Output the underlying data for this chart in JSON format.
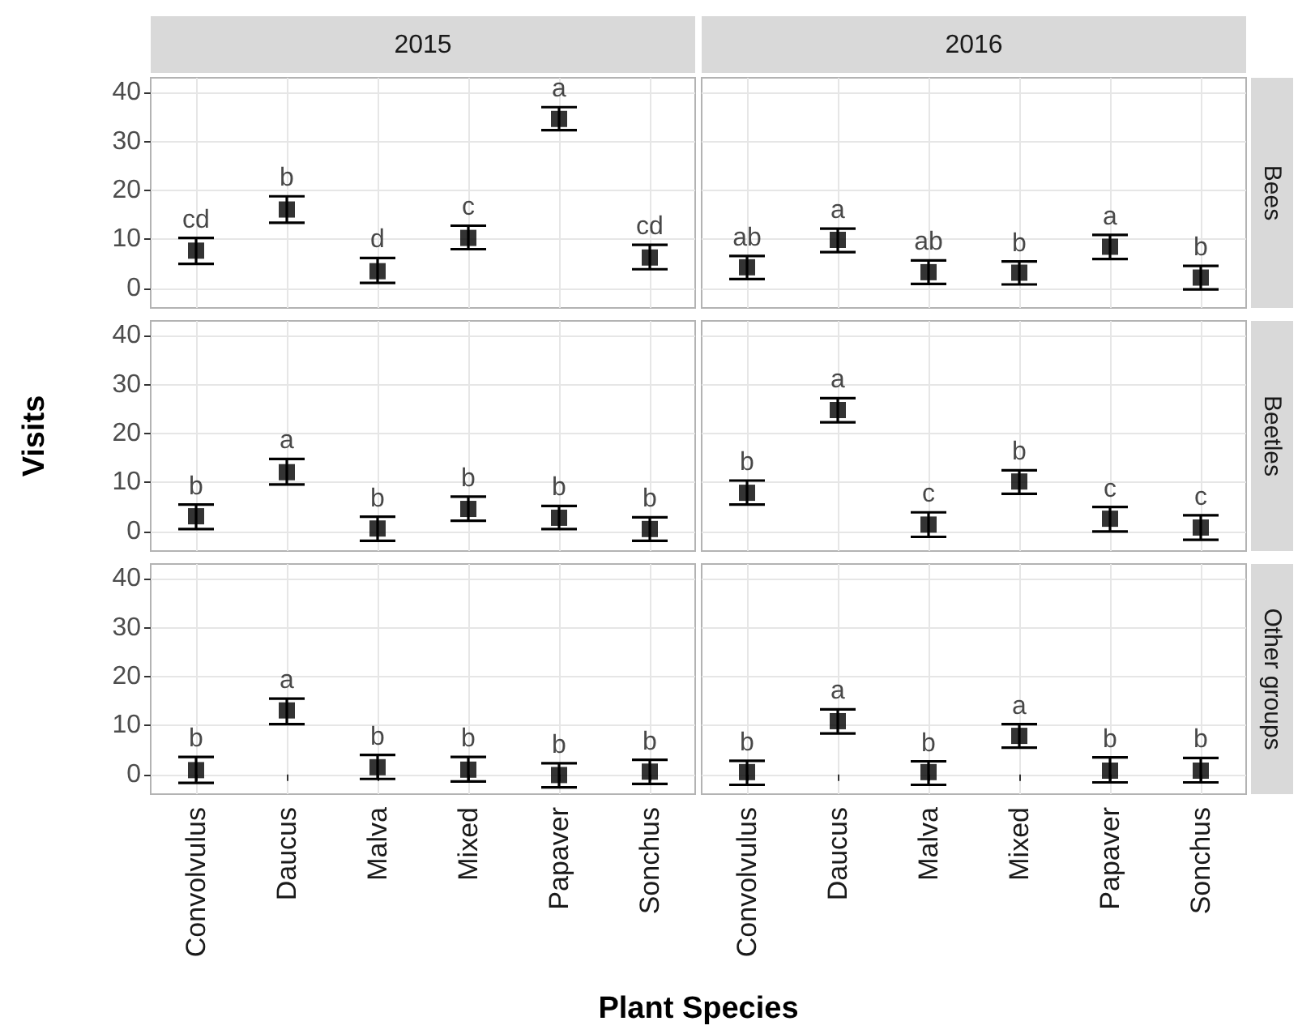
{
  "chart_data": [
    {
      "type": "scatter",
      "title": "2015",
      "categories": [
        "Convolvulus",
        "Daucus",
        "Malva",
        "Mixed",
        "Papaver",
        "Sonchus"
      ],
      "values": [
        7.7,
        16.1,
        3.5,
        10.3,
        34.6,
        6.3
      ],
      "errors": [
        [
          5.0,
          10.3
        ],
        [
          13.4,
          18.8
        ],
        [
          1.1,
          6.2
        ],
        [
          8.0,
          12.8
        ],
        [
          32.3,
          37.0
        ],
        [
          3.9,
          8.9
        ]
      ],
      "annotations": [
        {
          "text": "cd",
          "x": "Convolvulus",
          "y": 10.3
        },
        {
          "text": "b",
          "x": "Daucus",
          "y": 18.8
        },
        {
          "text": "d",
          "x": "Malva",
          "y": 6.2
        },
        {
          "text": "c",
          "x": "Mixed",
          "y": 12.8
        },
        {
          "text": "a",
          "x": "Papaver",
          "y": 37.0
        },
        {
          "text": "cd",
          "x": "Sonchus",
          "y": 8.9
        }
      ],
      "color": "#000000",
      "marker": "square",
      "ylim": [
        -4,
        43
      ],
      "yticks": [
        0,
        10,
        20,
        30,
        40
      ],
      "grid": true,
      "tick_labels": "y"
    },
    {
      "type": "scatter",
      "title": "2016",
      "y2label": "Bees",
      "categories": [
        "Convolvulus",
        "Daucus",
        "Malva",
        "Mixed",
        "Papaver",
        "Sonchus"
      ],
      "values": [
        4.3,
        9.9,
        3.3,
        3.2,
        8.5,
        2.2
      ],
      "errors": [
        [
          1.9,
          6.6
        ],
        [
          7.4,
          12.2
        ],
        [
          0.9,
          5.7
        ],
        [
          0.8,
          5.5
        ],
        [
          6.0,
          10.9
        ],
        [
          -0.2,
          4.6
        ]
      ],
      "annotations": [
        {
          "text": "ab",
          "x": "Convolvulus",
          "y": 6.6
        },
        {
          "text": "a",
          "x": "Daucus",
          "y": 12.2
        },
        {
          "text": "ab",
          "x": "Malva",
          "y": 5.7
        },
        {
          "text": "b",
          "x": "Mixed",
          "y": 5.5
        },
        {
          "text": "a",
          "x": "Papaver",
          "y": 10.9
        },
        {
          "text": "b",
          "x": "Sonchus",
          "y": 4.6
        }
      ],
      "color": "#000000",
      "marker": "square",
      "ylim": [
        -4,
        43
      ],
      "yticks": [
        0,
        10,
        20,
        30,
        40
      ],
      "grid": true,
      "tick_labels": false
    },
    {
      "type": "scatter",
      "ylabel": "Visits",
      "categories": [
        "Convolvulus",
        "Daucus",
        "Malva",
        "Mixed",
        "Papaver",
        "Sonchus"
      ],
      "values": [
        3.1,
        12.1,
        0.6,
        4.6,
        2.8,
        0.5
      ],
      "errors": [
        [
          0.5,
          5.5
        ],
        [
          9.6,
          14.8
        ],
        [
          -1.9,
          3.0
        ],
        [
          2.2,
          7.1
        ],
        [
          0.5,
          5.2
        ],
        [
          -1.9,
          2.9
        ]
      ],
      "annotations": [
        {
          "text": "b",
          "x": "Convolvulus",
          "y": 5.5
        },
        {
          "text": "a",
          "x": "Daucus",
          "y": 14.8
        },
        {
          "text": "b",
          "x": "Malva",
          "y": 3.0
        },
        {
          "text": "b",
          "x": "Mixed",
          "y": 7.1
        },
        {
          "text": "b",
          "x": "Papaver",
          "y": 5.2
        },
        {
          "text": "b",
          "x": "Sonchus",
          "y": 2.9
        }
      ],
      "color": "#000000",
      "marker": "square",
      "ylim": [
        -4,
        43
      ],
      "yticks": [
        0,
        10,
        20,
        30,
        40
      ],
      "grid": true,
      "tick_labels": "y"
    },
    {
      "type": "scatter",
      "y2label": "Beetles",
      "categories": [
        "Convolvulus",
        "Daucus",
        "Malva",
        "Mixed",
        "Papaver",
        "Sonchus"
      ],
      "values": [
        7.9,
        24.8,
        1.4,
        10.2,
        2.6,
        0.8
      ],
      "errors": [
        [
          5.5,
          10.4
        ],
        [
          22.3,
          27.2
        ],
        [
          -1.1,
          3.9
        ],
        [
          7.7,
          12.5
        ],
        [
          0.0,
          5.0
        ],
        [
          -1.7,
          3.3
        ]
      ],
      "annotations": [
        {
          "text": "b",
          "x": "Convolvulus",
          "y": 10.4
        },
        {
          "text": "a",
          "x": "Daucus",
          "y": 27.2
        },
        {
          "text": "c",
          "x": "Malva",
          "y": 3.9
        },
        {
          "text": "b",
          "x": "Mixed",
          "y": 12.5
        },
        {
          "text": "c",
          "x": "Papaver",
          "y": 5.0
        },
        {
          "text": "c",
          "x": "Sonchus",
          "y": 3.3
        }
      ],
      "color": "#000000",
      "marker": "square",
      "ylim": [
        -4,
        43
      ],
      "yticks": [
        0,
        10,
        20,
        30,
        40
      ],
      "grid": true,
      "tick_labels": false
    },
    {
      "type": "scatter",
      "xlabel": "Plant Species",
      "categories": [
        "Convolvulus",
        "Daucus",
        "Malva",
        "Mixed",
        "Papaver",
        "Sonchus"
      ],
      "values": [
        0.9,
        13.1,
        1.5,
        1.0,
        -0.1,
        0.6
      ],
      "errors": [
        [
          -1.7,
          3.6
        ],
        [
          10.3,
          15.5
        ],
        [
          -0.9,
          4.0
        ],
        [
          -1.4,
          3.6
        ],
        [
          -2.6,
          2.3
        ],
        [
          -1.9,
          3.0
        ]
      ],
      "annotations": [
        {
          "text": "b",
          "x": "Convolvulus",
          "y": 3.6
        },
        {
          "text": "a",
          "x": "Daucus",
          "y": 15.5
        },
        {
          "text": "b",
          "x": "Malva",
          "y": 4.0
        },
        {
          "text": "b",
          "x": "Mixed",
          "y": 3.6
        },
        {
          "text": "b",
          "x": "Papaver",
          "y": 2.3
        },
        {
          "text": "b",
          "x": "Sonchus",
          "y": 3.0
        }
      ],
      "color": "#000000",
      "marker": "square",
      "ylim": [
        -4,
        43
      ],
      "yticks": [
        0,
        10,
        20,
        30,
        40
      ],
      "grid": true
    },
    {
      "type": "scatter",
      "y2label": "Other groups",
      "categories": [
        "Convolvulus",
        "Daucus",
        "Malva",
        "Mixed",
        "Papaver",
        "Sonchus"
      ],
      "values": [
        0.5,
        10.9,
        0.5,
        7.9,
        0.8,
        0.8
      ],
      "errors": [
        [
          -2.1,
          2.8
        ],
        [
          8.4,
          13.3
        ],
        [
          -2.1,
          2.7
        ],
        [
          5.5,
          10.3
        ],
        [
          -1.6,
          3.5
        ],
        [
          -1.6,
          3.4
        ]
      ],
      "annotations": [
        {
          "text": "b",
          "x": "Convolvulus",
          "y": 2.8
        },
        {
          "text": "a",
          "x": "Daucus",
          "y": 13.3
        },
        {
          "text": "b",
          "x": "Malva",
          "y": 2.7
        },
        {
          "text": "a",
          "x": "Mixed",
          "y": 10.3
        },
        {
          "text": "b",
          "x": "Papaver",
          "y": 3.5
        },
        {
          "text": "b",
          "x": "Sonchus",
          "y": 3.4
        }
      ],
      "color": "#000000",
      "marker": "square",
      "ylim": [
        -4,
        43
      ],
      "yticks": [
        0,
        10,
        20,
        30,
        40
      ],
      "grid": true,
      "tick_labels": "x"
    }
  ]
}
